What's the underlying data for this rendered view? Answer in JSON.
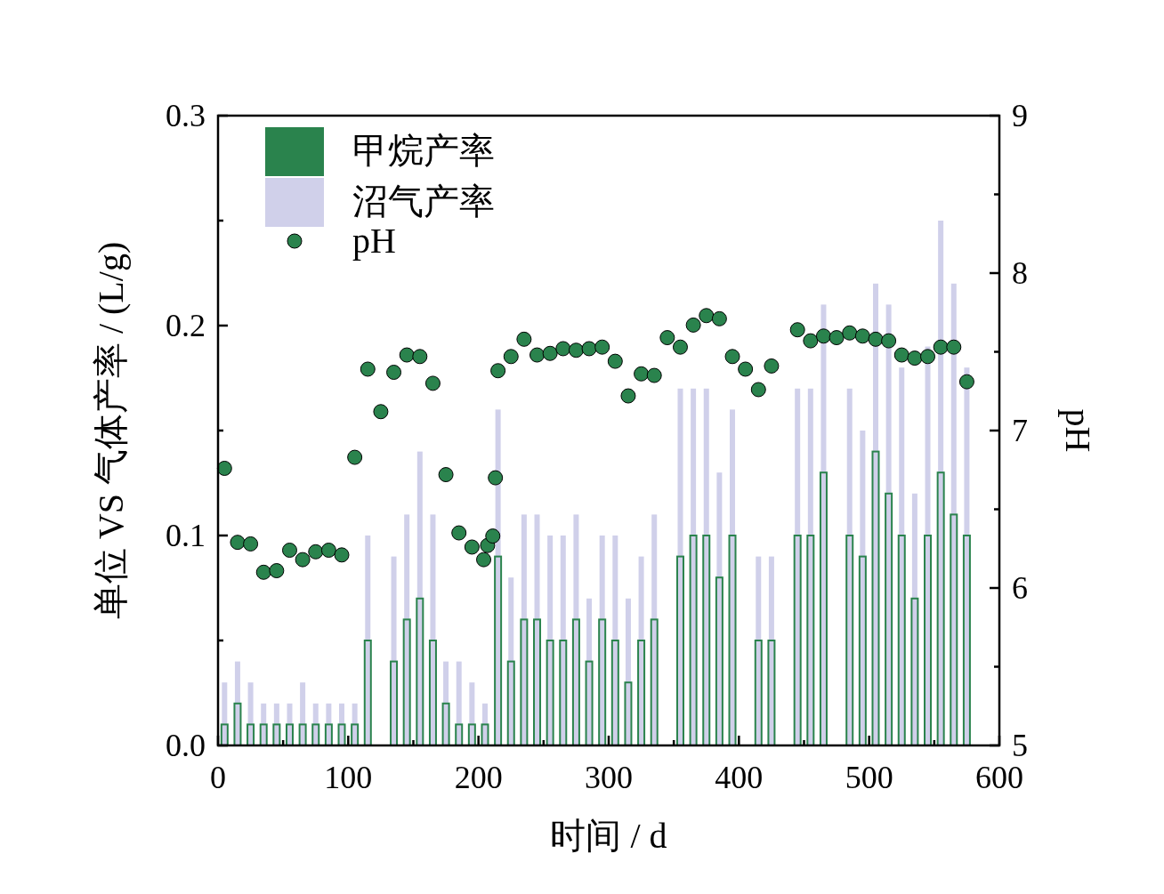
{
  "chart_data": {
    "type": "bar",
    "xlabel": "时间 / d",
    "ylabel": "单位 VS 气体产率 / (L/g)",
    "y2label": "pH",
    "x": [
      5,
      15,
      25,
      35,
      45,
      55,
      65,
      75,
      85,
      95,
      105,
      115,
      135,
      145,
      155,
      165,
      175,
      185,
      195,
      205,
      215,
      225,
      235,
      245,
      255,
      265,
      275,
      285,
      295,
      305,
      315,
      325,
      335,
      355,
      365,
      375,
      385,
      395,
      415,
      425,
      445,
      455,
      465,
      485,
      495,
      505,
      515,
      525,
      535,
      545,
      555,
      565,
      575
    ],
    "xlim": [
      0,
      600
    ],
    "xticks": [
      0,
      {
        "value": 50,
        "label": null
      },
      100,
      {
        "value": 150,
        "label": null
      },
      200,
      {
        "value": 250,
        "label": null
      },
      300,
      {
        "value": 350,
        "label": null
      },
      400,
      {
        "value": 450,
        "label": null
      },
      500,
      {
        "value": 550,
        "label": null
      },
      600
    ],
    "ylim": [
      0,
      0.3
    ],
    "yticks": [
      {
        "value": 0,
        "label": "0.0"
      },
      {
        "value": 0.05,
        "label": null
      },
      0.1,
      {
        "value": 0.15,
        "label": null
      },
      0.2,
      {
        "value": 0.25,
        "label": null
      },
      0.3
    ],
    "y2lim": [
      5,
      9
    ],
    "y2ticks": [
      5,
      {
        "value": 5.5,
        "label": null
      },
      6,
      {
        "value": 6.5,
        "label": null
      },
      7,
      {
        "value": 7.5,
        "label": null
      },
      8,
      {
        "value": 8.5,
        "label": null
      },
      9
    ],
    "legend": "top left",
    "grid": false,
    "series": [
      {
        "name": "甲烷产率",
        "color": "#2a834d",
        "values": [
          0.01,
          0.02,
          0.01,
          0.01,
          0.01,
          0.01,
          0.01,
          0.01,
          0.01,
          0.01,
          0.01,
          0.05,
          0.04,
          0.06,
          0.07,
          0.05,
          0.02,
          0.01,
          0.01,
          0.01,
          0.09,
          0.04,
          0.06,
          0.06,
          0.05,
          0.05,
          0.06,
          0.04,
          0.06,
          0.05,
          0.03,
          0.05,
          0.06,
          0.09,
          0.1,
          0.1,
          0.08,
          0.1,
          0.05,
          0.05,
          0.1,
          0.1,
          0.13,
          0.1,
          0.09,
          0.14,
          0.12,
          0.1,
          0.07,
          0.1,
          0.13,
          0.11,
          0.1
        ]
      },
      {
        "name": "沼气产率",
        "color": "#d0d0ea",
        "values": [
          0.03,
          0.04,
          0.03,
          0.02,
          0.02,
          0.02,
          0.03,
          0.02,
          0.02,
          0.02,
          0.02,
          0.1,
          0.09,
          0.11,
          0.14,
          0.11,
          0.04,
          0.04,
          0.03,
          0.02,
          0.16,
          0.08,
          0.11,
          0.11,
          0.1,
          0.1,
          0.11,
          0.07,
          0.1,
          0.1,
          0.07,
          0.09,
          0.11,
          0.17,
          0.17,
          0.17,
          0.13,
          0.16,
          0.09,
          0.09,
          0.17,
          0.17,
          0.21,
          0.17,
          0.15,
          0.22,
          0.21,
          0.18,
          0.12,
          0.19,
          0.25,
          0.22,
          0.18
        ]
      },
      {
        "name": "pH",
        "type": "scatter",
        "axis": "y2",
        "marker": "circle",
        "color": "#2a834d",
        "x": [
          5,
          15,
          25,
          35,
          45,
          55,
          65,
          75,
          85,
          95,
          105,
          115,
          125,
          135,
          145,
          155,
          165,
          175,
          185,
          195,
          204,
          207,
          211,
          213,
          215,
          225,
          235,
          245,
          255,
          265,
          275,
          285,
          295,
          305,
          315,
          325,
          335,
          345,
          355,
          365,
          375,
          385,
          395,
          405,
          415,
          425,
          445,
          455,
          465,
          475,
          485,
          495,
          505,
          515,
          525,
          535,
          545,
          555,
          565,
          575
        ],
        "values": [
          6.76,
          6.29,
          6.28,
          6.1,
          6.11,
          6.24,
          6.18,
          6.23,
          6.24,
          6.21,
          6.83,
          7.39,
          7.12,
          7.37,
          7.48,
          7.47,
          7.3,
          6.72,
          6.35,
          6.26,
          6.18,
          6.27,
          6.33,
          6.7,
          7.38,
          7.47,
          7.58,
          7.48,
          7.49,
          7.52,
          7.51,
          7.52,
          7.53,
          7.44,
          7.22,
          7.36,
          7.35,
          7.59,
          7.53,
          7.67,
          7.73,
          7.71,
          7.47,
          7.39,
          7.26,
          7.41,
          7.64,
          7.57,
          7.6,
          7.59,
          7.62,
          7.6,
          7.58,
          7.57,
          7.48,
          7.46,
          7.47,
          7.53,
          7.53,
          7.31
        ]
      }
    ]
  }
}
